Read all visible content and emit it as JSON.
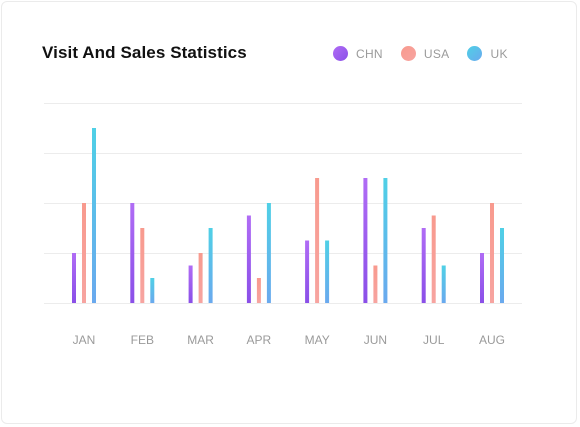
{
  "card": {
    "title": "Visit And Sales Statistics"
  },
  "chart_data": {
    "type": "bar",
    "title": "Visit And Sales Statistics",
    "categories": [
      "JAN",
      "FEB",
      "MAR",
      "APR",
      "MAY",
      "JUN",
      "JUL",
      "AUG"
    ],
    "series": [
      {
        "name": "CHN",
        "values": [
          20,
          40,
          15,
          35,
          25,
          50,
          30,
          20
        ],
        "color_top": "#b06cf5",
        "color_bottom": "#8a4fe8"
      },
      {
        "name": "USA",
        "values": [
          40,
          30,
          20,
          10,
          50,
          15,
          35,
          40
        ],
        "color_top": "#f89a8e",
        "color_bottom": "#f7a4a0"
      },
      {
        "name": "UK",
        "values": [
          70,
          10,
          30,
          40,
          25,
          50,
          15,
          30
        ],
        "color_top": "#4fd0e6",
        "color_bottom": "#6aa9ee"
      }
    ],
    "ylim": [
      0,
      80
    ],
    "grid": true,
    "legend": "top-right",
    "xlabel": "",
    "ylabel": ""
  }
}
